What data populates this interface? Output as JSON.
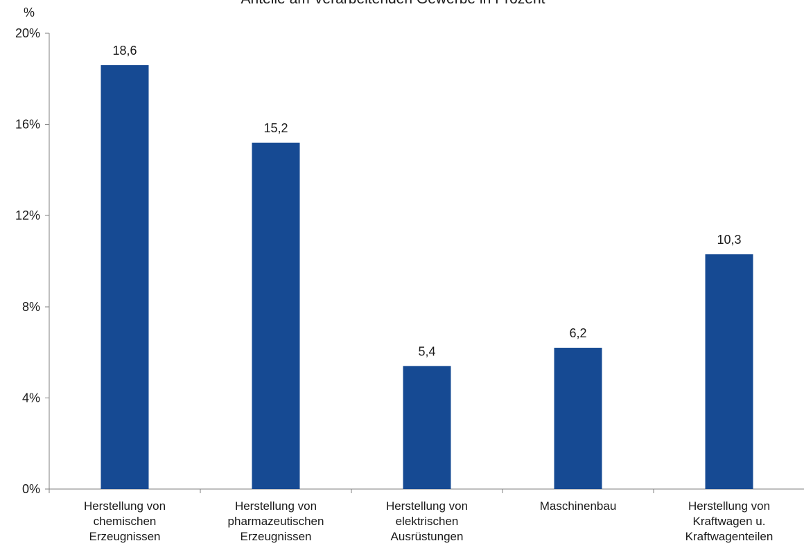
{
  "chart_data": {
    "type": "bar",
    "title": "Anteile am Verarbeitenden Gewerbe in Prozent",
    "ylabel": "%",
    "xlabel": "",
    "categories": [
      [
        "Herstellung von",
        "chemischen",
        "Erzeugnissen"
      ],
      [
        "Herstellung von",
        "pharmazeutischen",
        "Erzeugnissen"
      ],
      [
        "Herstellung von",
        "elektrischen",
        "Ausrüstungen"
      ],
      [
        "Maschinenbau"
      ],
      [
        "Herstellung von",
        "Kraftwagen u.",
        "Kraftwagenteilen"
      ]
    ],
    "values": [
      18.6,
      15.2,
      5.4,
      6.2,
      10.3
    ],
    "data_labels": [
      "18,6",
      "15,2",
      "5,4",
      "6,2",
      "10,3"
    ],
    "y_ticks": [
      0,
      4,
      8,
      12,
      16,
      20
    ],
    "y_tick_labels": [
      "0%",
      "4%",
      "8%",
      "12%",
      "16%",
      "20%"
    ],
    "ylim": [
      0,
      20
    ],
    "grid": false,
    "legend": "none",
    "bar_color": "#164A93"
  }
}
